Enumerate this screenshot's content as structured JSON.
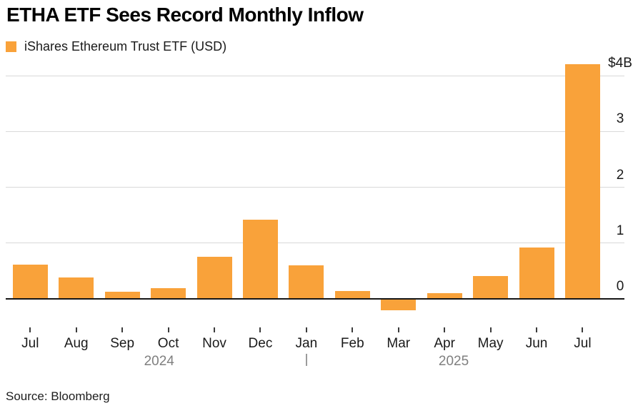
{
  "header": {
    "title": "ETHA ETF Sees Record Monthly Inflow"
  },
  "legend": {
    "label": "iShares Ethereum Trust ETF (USD)",
    "swatch_color": "#F9A23A"
  },
  "chart_data": {
    "type": "bar",
    "title": "ETHA ETF Sees Record Monthly Inflow",
    "series": [
      {
        "name": "iShares Ethereum Trust ETF (USD)",
        "values": [
          0.62,
          0.38,
          0.13,
          0.19,
          0.75,
          1.42,
          0.6,
          0.14,
          -0.2,
          0.1,
          0.41,
          0.92,
          4.21
        ]
      }
    ],
    "categories": [
      "Jul",
      "Aug",
      "Sep",
      "Oct",
      "Nov",
      "Dec",
      "Jan",
      "Feb",
      "Mar",
      "Apr",
      "May",
      "Jun",
      "Jul"
    ],
    "years": [
      {
        "label": "2024"
      },
      {
        "label": "2025"
      }
    ],
    "year_divider_month_index": 6,
    "unit": "USD billions",
    "xlabel": "",
    "ylabel": "",
    "ylim": [
      -0.45,
      4.35
    ],
    "y_ticks": [
      {
        "value": 4,
        "label": "$4B"
      },
      {
        "value": 3,
        "label": "3"
      },
      {
        "value": 2,
        "label": "2"
      },
      {
        "value": 1,
        "label": "1"
      },
      {
        "value": 0,
        "label": "0"
      }
    ],
    "axis_side": "right",
    "grid": true,
    "legend_position": "top-left",
    "bar_color": "#F9A23A",
    "gridline_color": "#d9d9d9",
    "baseline_color": "#161616"
  },
  "footer": {
    "source": "Source: Bloomberg"
  }
}
